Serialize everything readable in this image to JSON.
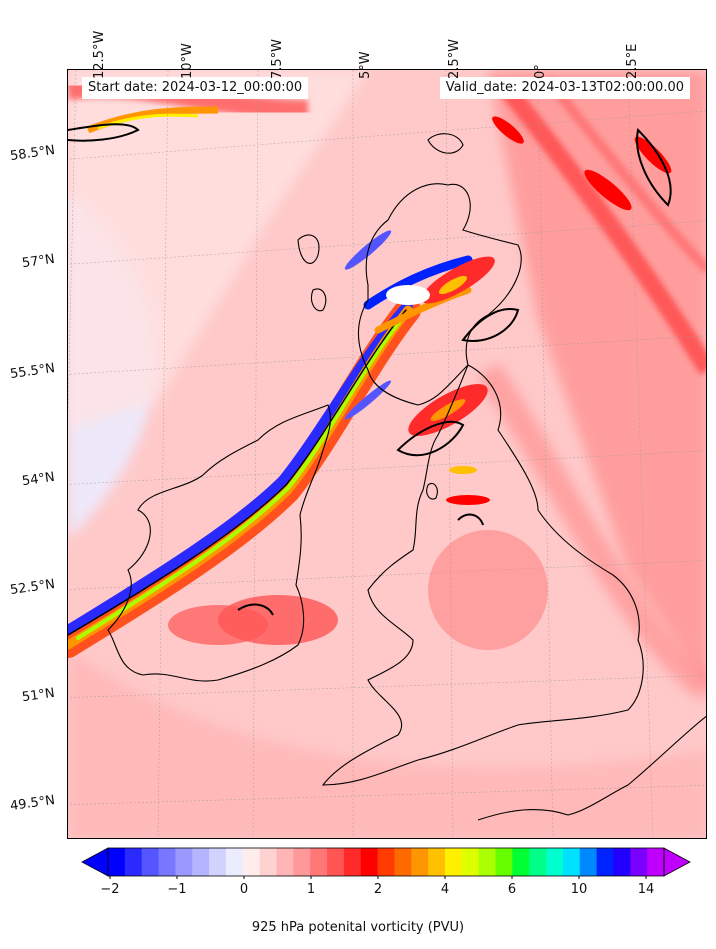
{
  "header": {
    "start_date": "Start date: 2024-03-12_00:00:00",
    "valid_date": "Valid_date: 2024-03-13T02:00:00.00"
  },
  "map": {
    "projection_hint": "oblique lat-lon grid over British Isles",
    "field": "925 hPa potential vorticity",
    "lon_labels": [
      "12.5°W",
      "10°W",
      "7.5°W",
      "5°W",
      "2.5°W",
      "0°",
      "2.5°E"
    ],
    "lat_labels": [
      "58.5°N",
      "57°N",
      "55.5°N",
      "54°N",
      "52.5°N",
      "51°N",
      "49.5°N"
    ],
    "gridlines": true,
    "background_color": "#ffd6d6",
    "coastline_color": "#000000"
  },
  "colorbar": {
    "label": "925 hPa potenital vorticity (PVU)",
    "tick_labels": [
      "−2",
      "−1",
      "0",
      "1",
      "2",
      "4",
      "6",
      "10",
      "14"
    ],
    "colors": [
      "#0000ff",
      "#2a2aff",
      "#5555ff",
      "#7777ff",
      "#9999ff",
      "#b5b5ff",
      "#d2d2ff",
      "#ececff",
      "#ffecec",
      "#ffd2d2",
      "#ffb5b5",
      "#ff9999",
      "#ff7777",
      "#ff5555",
      "#ff2a2a",
      "#ff0000",
      "#ff3b00",
      "#ff6a00",
      "#ff9500",
      "#ffc000",
      "#fff000",
      "#ddff00",
      "#aaff00",
      "#66ff00",
      "#00ff33",
      "#00ff88",
      "#00ffcc",
      "#00e0ff",
      "#0088ff",
      "#0022ff",
      "#2200ff",
      "#7a00ff",
      "#c000ff"
    ],
    "extend": "both"
  }
}
